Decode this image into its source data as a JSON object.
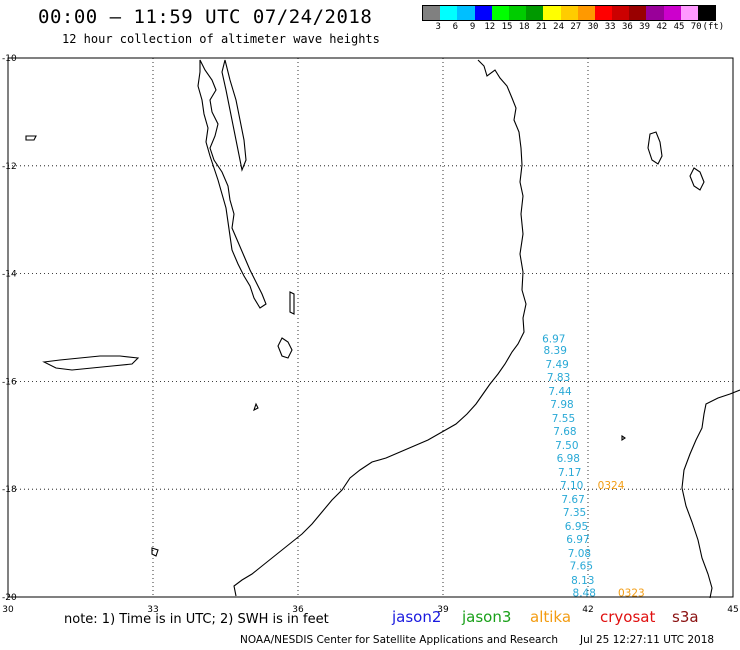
{
  "header": {
    "title": "00:00 – 11:59 UTC 07/24/2018",
    "subtitle": "12 hour collection of altimeter wave heights"
  },
  "colorbar": {
    "colors": [
      "#808080",
      "#00ffff",
      "#00bfff",
      "#0000ff",
      "#00ff00",
      "#00cc00",
      "#009900",
      "#ffff00",
      "#ffcc00",
      "#ff9900",
      "#ff0000",
      "#cc0000",
      "#990000",
      "#990099",
      "#cc00cc",
      "#ff99ff",
      "#000000"
    ],
    "labels": [
      "3",
      "6",
      "9",
      "12",
      "15",
      "18",
      "21",
      "24",
      "27",
      "30",
      "33",
      "36",
      "39",
      "42",
      "45",
      "70",
      "(ft)"
    ]
  },
  "chart_data": {
    "type": "scatter",
    "xlim": [
      30,
      45
    ],
    "ylim": [
      -20,
      -10
    ],
    "x_ticks": [
      30,
      33,
      36,
      39,
      42,
      45
    ],
    "y_ticks": [
      -10,
      -12,
      -14,
      -16,
      -18,
      -20
    ],
    "grid": true,
    "series": [
      {
        "name": "altika",
        "color": "#29a9d6",
        "points": [
          {
            "lon": 41.05,
            "lat": -15.2,
            "label": "6.97"
          },
          {
            "lon": 41.08,
            "lat": -15.42,
            "label": "8.39"
          },
          {
            "lon": 41.12,
            "lat": -15.68,
            "label": "7.49"
          },
          {
            "lon": 41.15,
            "lat": -15.92,
            "label": "7.83"
          },
          {
            "lon": 41.18,
            "lat": -16.18,
            "label": "7.44"
          },
          {
            "lon": 41.22,
            "lat": -16.42,
            "label": "7.98"
          },
          {
            "lon": 41.25,
            "lat": -16.68,
            "label": "7.55"
          },
          {
            "lon": 41.28,
            "lat": -16.92,
            "label": "7.68"
          },
          {
            "lon": 41.32,
            "lat": -17.18,
            "label": "7.50"
          },
          {
            "lon": 41.35,
            "lat": -17.42,
            "label": "6.98"
          },
          {
            "lon": 41.38,
            "lat": -17.68,
            "label": "7.17"
          },
          {
            "lon": 41.42,
            "lat": -17.92,
            "label": "7.10"
          },
          {
            "lon": 41.45,
            "lat": -18.18,
            "label": "7.67"
          },
          {
            "lon": 41.48,
            "lat": -18.42,
            "label": "7.35"
          },
          {
            "lon": 41.52,
            "lat": -18.68,
            "label": "6.95"
          },
          {
            "lon": 41.55,
            "lat": -18.92,
            "label": "6.97"
          },
          {
            "lon": 41.58,
            "lat": -19.18,
            "label": "7.08"
          },
          {
            "lon": 41.62,
            "lat": -19.42,
            "label": "7.65"
          },
          {
            "lon": 41.65,
            "lat": -19.68,
            "label": "8.13"
          },
          {
            "lon": 41.68,
            "lat": -19.92,
            "label": "8.48"
          }
        ]
      },
      {
        "name": "time-labels",
        "color": "#f39c12",
        "points": [
          {
            "lon": 42.2,
            "lat": -17.92,
            "label": "0324"
          },
          {
            "lon": 42.62,
            "lat": -19.92,
            "label": "0323"
          }
        ]
      }
    ]
  },
  "footer": {
    "note": "note: 1) Time is in UTC; 2) SWH is in feet",
    "credit": "NOAA/NESDIS Center for Satellite Applications and Research",
    "timestamp": "Jul 25 12:27:11 UTC 2018"
  },
  "legend": [
    {
      "label": "jason2",
      "color": "#1a1adf"
    },
    {
      "label": "jason3",
      "color": "#1aa01a"
    },
    {
      "label": "altika",
      "color": "#f39c12"
    },
    {
      "label": "cryosat",
      "color": "#e01010"
    },
    {
      "label": "s3a",
      "color": "#8a1010"
    }
  ]
}
